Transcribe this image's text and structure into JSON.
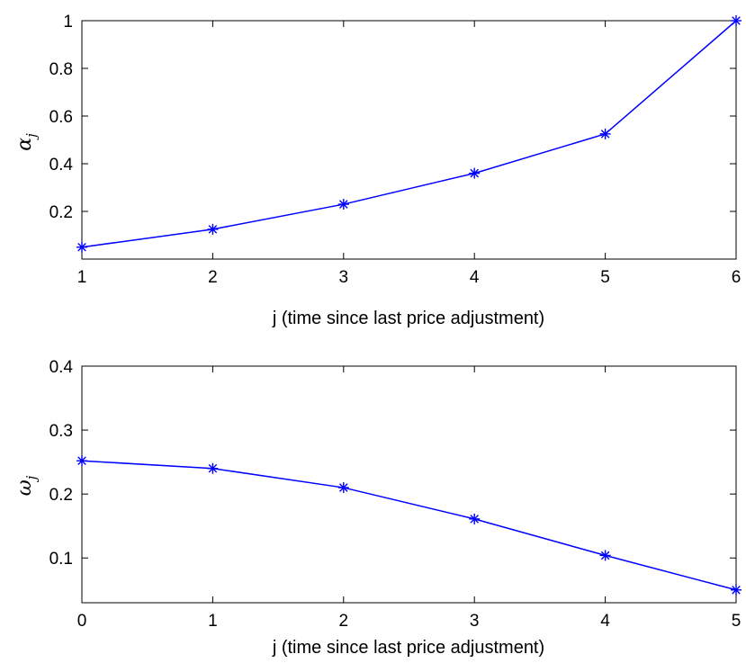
{
  "chart_data": [
    {
      "type": "line",
      "xlabel": "j (time since last price adjustment)",
      "ylabel": {
        "symbol": "α",
        "subscript": "j"
      },
      "x": [
        1,
        2,
        3,
        4,
        5,
        6
      ],
      "xlim": [
        1,
        6
      ],
      "ylim": [
        0,
        1
      ],
      "xticks": [
        "1",
        "2",
        "3",
        "4",
        "5",
        "6"
      ],
      "yticks": [
        "0.2",
        "0.4",
        "0.6",
        "0.8",
        "1"
      ],
      "ytick_values": [
        0.2,
        0.4,
        0.6,
        0.8,
        1.0
      ],
      "series": [
        {
          "values": [
            0.05,
            0.125,
            0.23,
            0.36,
            0.525,
            1.0
          ],
          "color": "#0000ff",
          "marker": "asterisk"
        }
      ],
      "grid": false
    },
    {
      "type": "line",
      "xlabel": "j (time since last price adjustment)",
      "ylabel": {
        "symbol": "ω",
        "subscript": "j"
      },
      "x": [
        0,
        1,
        2,
        3,
        4,
        5
      ],
      "xlim": [
        0,
        5
      ],
      "ylim": [
        0.03,
        0.4
      ],
      "xticks": [
        "0",
        "1",
        "2",
        "3",
        "4",
        "5"
      ],
      "yticks": [
        "0.1",
        "0.2",
        "0.3",
        "0.4"
      ],
      "ytick_values": [
        0.1,
        0.2,
        0.3,
        0.4
      ],
      "series": [
        {
          "values": [
            0.252,
            0.24,
            0.21,
            0.161,
            0.104,
            0.05
          ],
          "color": "#0000ff",
          "marker": "asterisk"
        }
      ],
      "grid": false
    }
  ]
}
